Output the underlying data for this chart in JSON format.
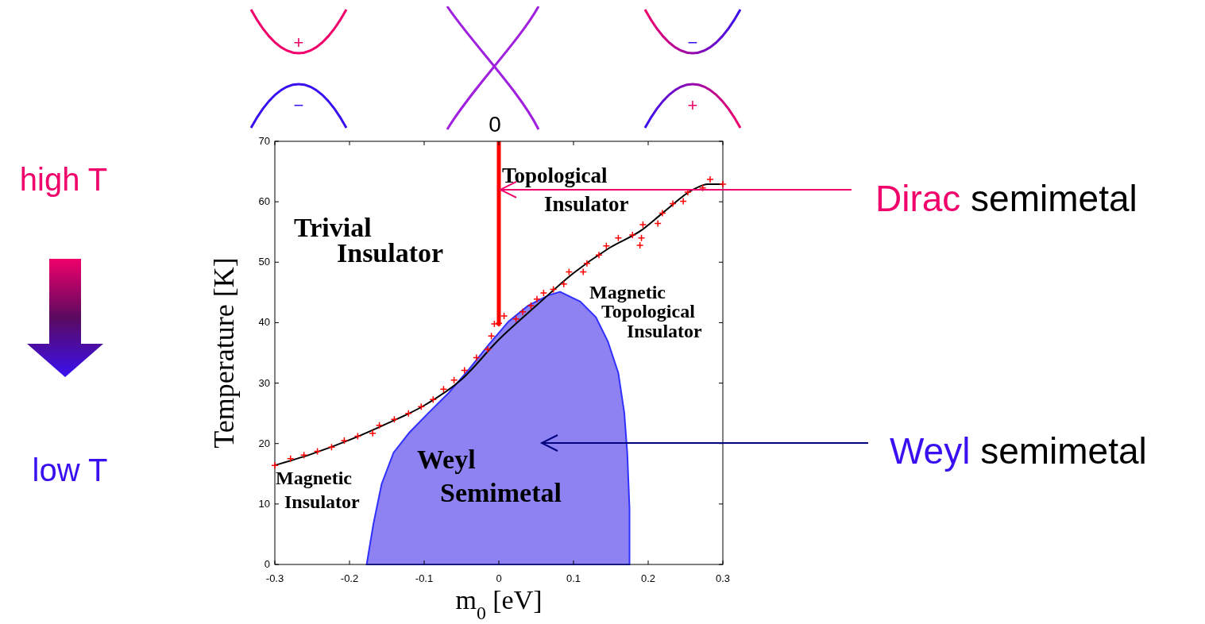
{
  "chart_data": {
    "type": "scatter",
    "xlabel": "m$_{0}$ [eV]",
    "ylabel": "Temperature [K]",
    "xlim": [
      -0.3,
      0.3
    ],
    "ylim": [
      0,
      70
    ],
    "xticks": [
      -0.3,
      -0.2,
      -0.1,
      0,
      0.1,
      0.2,
      0.3
    ],
    "yticks": [
      0,
      10,
      20,
      30,
      40,
      50,
      60,
      70
    ],
    "grid": false,
    "legend": false,
    "series": [
      {
        "type": "area",
        "color": "#7a6cf0",
        "x": [
          -0.177,
          -0.168,
          -0.157,
          -0.141,
          -0.12,
          -0.094,
          -0.067,
          -0.04,
          -0.014,
          0.013,
          0.039,
          0.066,
          0.082,
          0.109,
          0.13,
          0.146,
          0.16,
          0.168,
          0.172,
          0.175,
          0.175
        ],
        "values": [
          0,
          6.7,
          13.3,
          18.5,
          21.8,
          25.1,
          28.4,
          32.3,
          36.3,
          40.2,
          42.8,
          44.5,
          45.1,
          43.5,
          40.9,
          36.9,
          31.7,
          25.1,
          18.5,
          9.3,
          0
        ]
      },
      {
        "type": "line",
        "color": "#000000",
        "x": [
          -0.3,
          -0.25,
          -0.2,
          -0.15,
          -0.1,
          -0.05,
          0,
          0.05,
          0.1,
          0.15,
          0.19,
          0.22,
          0.26,
          0.28,
          0.3
        ],
        "values": [
          16.4,
          18.3,
          20.6,
          23.3,
          26.3,
          30.6,
          37.2,
          42.8,
          48.2,
          52.5,
          55.2,
          58.2,
          62,
          62.9,
          62.9
        ]
      },
      {
        "type": "scatter",
        "marker": "cross",
        "color": "#ff0000",
        "x": [
          -0.3,
          -0.279,
          -0.261,
          -0.243,
          -0.224,
          -0.207,
          -0.189,
          -0.169,
          -0.16,
          -0.14,
          -0.121,
          -0.104,
          -0.088,
          -0.074,
          -0.06,
          -0.046,
          -0.03,
          -0.015,
          -0.01,
          -0.006,
          0,
          0.007,
          0.023,
          0.032,
          0.043,
          0.051,
          0.06,
          0.073,
          0.087,
          0.094,
          0.113,
          0.118,
          0.134,
          0.144,
          0.16,
          0.179,
          0.191,
          0.189,
          0.193,
          0.213,
          0.219,
          0.233,
          0.247,
          0.253,
          0.273,
          0.283,
          0.3
        ],
        "values": [
          16.4,
          17.5,
          18.1,
          18.7,
          19.4,
          20.5,
          21.2,
          21.7,
          23,
          24,
          25,
          26.1,
          27.3,
          29,
          30.5,
          32.1,
          34.2,
          35.6,
          37.8,
          39.8,
          39.9,
          41.1,
          40.6,
          41.8,
          42.8,
          43.9,
          44.9,
          45.5,
          46.4,
          48.4,
          48.4,
          49.8,
          51.2,
          52.7,
          54,
          54.5,
          54,
          52.8,
          56.2,
          56.4,
          58.1,
          59.7,
          60.1,
          61.6,
          62.3,
          63.7,
          62.9
        ]
      },
      {
        "type": "line",
        "color": "#ff0000",
        "x": [
          0,
          0
        ],
        "values": [
          39.5,
          70
        ]
      }
    ],
    "annotations": [
      "+",
      "−",
      "0",
      "−",
      "+",
      "high T",
      "low T",
      {
        "text": "Dirac semimetal",
        "x": 0,
        "y": 62
      },
      "Weyl semimetal",
      "Trivial Insulator",
      "Topological Insulator",
      "Magnetic Topological Insulator",
      "Weyl Semimetal",
      "Magnetic Insulator"
    ]
  }
}
